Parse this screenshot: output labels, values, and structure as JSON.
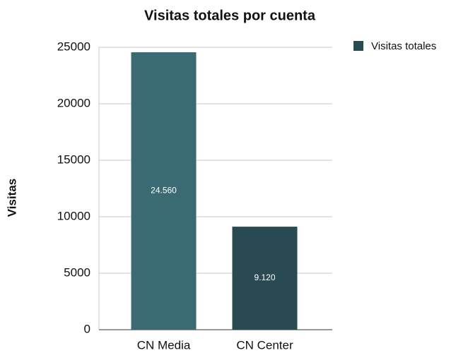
{
  "chart_data": {
    "type": "bar",
    "title": "Visitas totales por cuenta",
    "ylabel": "Visitas",
    "categories": [
      "CN Media",
      "CN Center"
    ],
    "series": [
      {
        "name": "Visitas totales",
        "color": "#2a4a53",
        "values": [
          24560,
          9120
        ],
        "value_labels": [
          "24.560",
          "9.120"
        ]
      }
    ],
    "bar_colors": [
      "#3a6b74",
      "#2a4a53"
    ],
    "ylim": [
      0,
      25000
    ],
    "yticks": [
      0,
      5000,
      10000,
      15000,
      20000,
      25000
    ],
    "grid": true,
    "legend": "right"
  }
}
